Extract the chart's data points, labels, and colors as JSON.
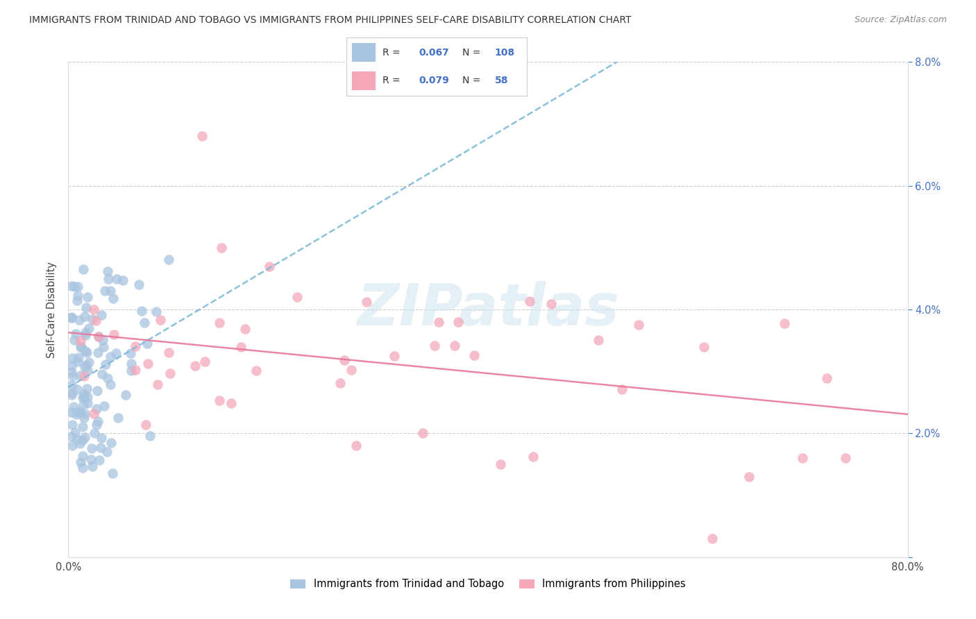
{
  "title": "IMMIGRANTS FROM TRINIDAD AND TOBAGO VS IMMIGRANTS FROM PHILIPPINES SELF-CARE DISABILITY CORRELATION CHART",
  "source": "Source: ZipAtlas.com",
  "ylabel": "Self-Care Disability",
  "xlim": [
    0,
    0.8
  ],
  "ylim": [
    0,
    0.08
  ],
  "series1_name": "Immigrants from Trinidad and Tobago",
  "series1_R": 0.067,
  "series1_N": 108,
  "series1_color": "#a8c4e0",
  "series1_line_color": "#7fb9d8",
  "series2_name": "Immigrants from Philippines",
  "series2_R": 0.079,
  "series2_N": 58,
  "series2_color": "#f4a7b9",
  "series2_line_color": "#e8799a",
  "watermark": "ZIPatlas",
  "background_color": "#ffffff",
  "grid_color": "#cccccc",
  "title_fontsize": 10.5,
  "tick_color_right": "#4472c4"
}
